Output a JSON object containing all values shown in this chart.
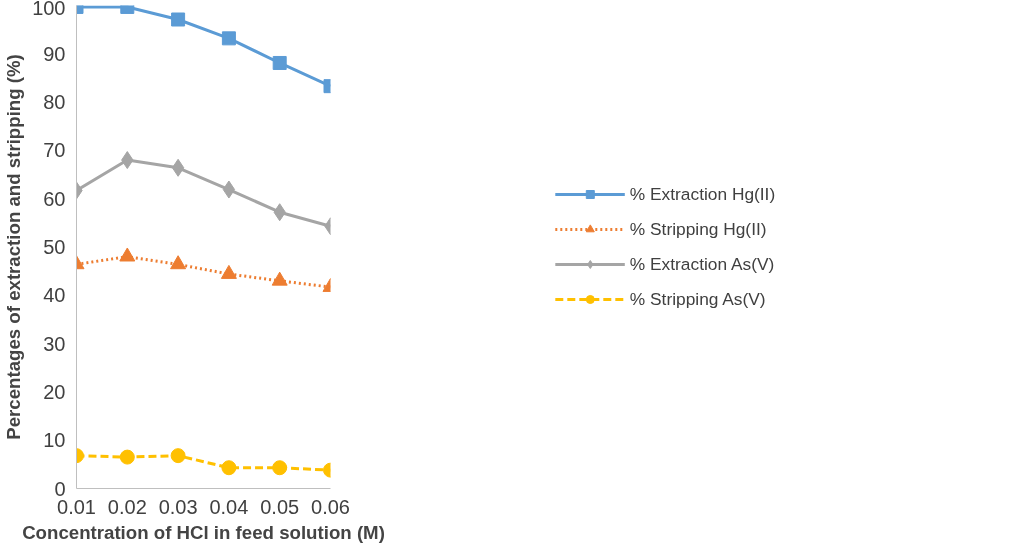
{
  "chart_data": {
    "type": "line",
    "xlabel": "Concentration of HCl in feed solution (M)",
    "ylabel": "Percentages of extraction and stripping (%)",
    "x": [
      0.01,
      0.02,
      0.03,
      0.04,
      0.05,
      0.06
    ],
    "xlim": [
      0.01,
      0.06
    ],
    "xticks": [
      {
        "value": 0.01,
        "label": "0.01"
      },
      {
        "value": 0.02,
        "label": "0.02"
      },
      {
        "value": 0.03,
        "label": "0.03"
      },
      {
        "value": 0.04,
        "label": "0.04"
      },
      {
        "value": 0.05,
        "label": "0.05"
      },
      {
        "value": 0.06,
        "label": "0.06"
      }
    ],
    "ylim": [
      0,
      100
    ],
    "yticks": [
      0,
      10,
      20,
      30,
      40,
      50,
      60,
      70,
      80,
      90,
      100
    ],
    "grid": false,
    "legend": "right",
    "series": [
      {
        "name": "% Extraction Hg(II)",
        "color": "#5b9bd5",
        "marker": "square",
        "line_style": "solid",
        "values": [
          99.7,
          99.7,
          97.1,
          93.2,
          88.1,
          83.3
        ]
      },
      {
        "name": "% Stripping Hg(II)",
        "color": "#ed7d31",
        "marker": "triangle",
        "line_style": "dotted",
        "values": [
          46.4,
          48,
          46.4,
          44.4,
          43,
          41.7
        ]
      },
      {
        "name": "% Extraction As(V)",
        "color": "#a5a5a5",
        "marker": "diamond",
        "line_style": "solid",
        "values": [
          61.7,
          68,
          66.4,
          61.9,
          57.2,
          54.3
        ]
      },
      {
        "name": "% Stripping As(V)",
        "color": "#ffc000",
        "marker": "circle",
        "line_style": "dashed",
        "values": [
          6.8,
          6.5,
          6.8,
          4.3,
          4.3,
          3.8
        ]
      }
    ]
  }
}
